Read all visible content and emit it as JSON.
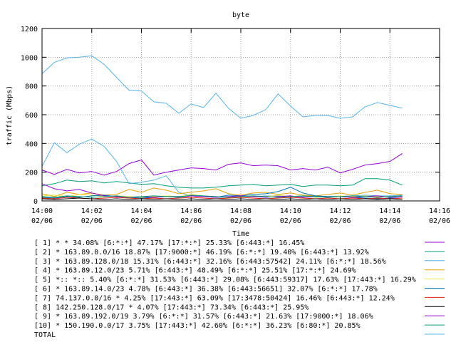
{
  "chart_data": {
    "type": "line",
    "title": "byte",
    "xlabel": "Time",
    "ylabel": "traffic (Mbps)",
    "ylim": [
      0,
      1200
    ],
    "yticks": [
      0,
      200,
      400,
      600,
      800,
      1000,
      1200
    ],
    "xlim": [
      0,
      16
    ],
    "xticks": [
      {
        "pos": 0,
        "time": "14:00",
        "date": "02/06"
      },
      {
        "pos": 2,
        "time": "14:02",
        "date": "02/06"
      },
      {
        "pos": 4,
        "time": "14:04",
        "date": "02/06"
      },
      {
        "pos": 6,
        "time": "14:06",
        "date": "02/06"
      },
      {
        "pos": 8,
        "time": "14:08",
        "date": "02/06"
      },
      {
        "pos": 10,
        "time": "14:10",
        "date": "02/06"
      },
      {
        "pos": 12,
        "time": "14:12",
        "date": "02/06"
      },
      {
        "pos": 14,
        "time": "14:14",
        "date": "02/06"
      },
      {
        "pos": 16,
        "time": "14:16",
        "date": "02/06"
      }
    ],
    "x": [
      0,
      0.5,
      1,
      1.5,
      2,
      2.5,
      3,
      3.5,
      4,
      4.5,
      5,
      5.5,
      6,
      6.5,
      7,
      7.5,
      8,
      8.5,
      9,
      9.5,
      10,
      10.5,
      11,
      11.5,
      12,
      12.5,
      13,
      13.5,
      14,
      14.5
    ],
    "grid": true,
    "legend_position": "bottom",
    "series": [
      {
        "name": "[ 1] * * 34.08%  [6:*:*] 47.17% [17:*:*] 25.33% [6:443:*] 16.45%",
        "color": "#9400d3",
        "values": [
          215,
          185,
          220,
          195,
          205,
          180,
          205,
          260,
          285,
          180,
          200,
          215,
          230,
          225,
          215,
          255,
          265,
          245,
          250,
          245,
          215,
          225,
          215,
          235,
          195,
          220,
          250,
          260,
          275,
          330
        ]
      },
      {
        "name": "[ 2] * 163.89.0.0/16 18.87%  [17:9000:*] 46.19% [6:*:*] 19.40% [6:443:*] 13.92%",
        "color": "#009e73",
        "values": [
          105,
          120,
          145,
          135,
          140,
          125,
          135,
          125,
          115,
          120,
          105,
          95,
          90,
          90,
          95,
          105,
          110,
          115,
          105,
          110,
          115,
          100,
          110,
          110,
          105,
          110,
          155,
          155,
          145,
          110
        ]
      },
      {
        "name": "[ 3] * 163.89.128.0/18 15.31%  [6:443:*] 32.16% [6:443:57542] 24.11% [6:*:*] 18.56%",
        "color": "#56b4e9",
        "values": [
          240,
          405,
          335,
          395,
          430,
          380,
          275,
          120,
          130,
          145,
          175,
          60,
          35,
          30,
          25,
          25,
          30,
          30,
          35,
          35,
          30,
          30,
          35,
          30,
          30,
          35,
          40,
          35,
          35,
          40
        ]
      },
      {
        "name": "[ 4] * 163.89.12.0/23 5.71%  [6:443:*] 48.49% [6:*:*] 25.51% [17:*:*] 24.69%",
        "color": "#e69f00",
        "values": [
          50,
          30,
          60,
          45,
          55,
          40,
          45,
          80,
          60,
          90,
          75,
          50,
          60,
          70,
          85,
          50,
          40,
          55,
          60,
          45,
          55,
          40,
          35,
          45,
          55,
          40,
          60,
          75,
          50,
          45
        ]
      },
      {
        "name": "[ 5] *:: *:: 5.40%  [6:*:*] 31.53% [6:443:*] 29.08% [6:443:59317] 17.63% [17:443:*] 16.29%",
        "color": "#f0e442",
        "values": [
          35,
          40,
          30,
          45,
          40,
          30,
          35,
          30,
          25,
          30,
          35,
          30,
          45,
          35,
          30,
          25,
          30,
          35,
          30,
          40,
          30,
          35,
          25,
          30,
          35,
          30,
          35,
          30,
          30,
          35
        ]
      },
      {
        "name": "[ 6] * 163.89.14.0/23 4.78%  [6:443:*] 36.38% [6:443:56651] 32.07% [6:*:*] 17.78%",
        "color": "#0072b2",
        "values": [
          25,
          20,
          30,
          25,
          35,
          40,
          30,
          25,
          20,
          25,
          30,
          30,
          35,
          30,
          25,
          40,
          35,
          45,
          50,
          65,
          95,
          55,
          35,
          30,
          30,
          25,
          20,
          15,
          20,
          20
        ]
      },
      {
        "name": "[ 7] 74.137.0.0/16 * 4.25%  [17:443:*] 63.09% [17:3478:50424] 16.46% [6:443:*] 12.24%",
        "color": "#e51e10",
        "values": [
          20,
          15,
          25,
          20,
          15,
          20,
          25,
          20,
          15,
          20,
          15,
          20,
          25,
          20,
          15,
          20,
          25,
          20,
          15,
          20,
          25,
          20,
          15,
          20,
          15,
          20,
          15,
          20,
          15,
          20
        ]
      },
      {
        "name": "[ 8] 142.250.128.0/17 * 4.07%  [17:443:*] 73.34% [6:443:*] 25.95%",
        "color": "#000000",
        "values": [
          15,
          10,
          15,
          20,
          15,
          10,
          15,
          10,
          15,
          10,
          15,
          10,
          15,
          10,
          15,
          10,
          15,
          10,
          15,
          10,
          15,
          10,
          15,
          10,
          15,
          10,
          15,
          10,
          15,
          10
        ]
      },
      {
        "name": "[ 9] * 163.89.192.0/19 3.79%  [6:*:*] 31.57% [6:443:*] 21.63% [17:9000:*] 18.06%",
        "color": "#9400d3",
        "values": [
          120,
          85,
          70,
          80,
          55,
          35,
          30,
          25,
          30,
          25,
          30,
          25,
          35,
          30,
          25,
          30,
          35,
          30,
          25,
          30,
          35,
          25,
          30,
          25,
          30,
          25,
          30,
          35,
          25,
          30
        ]
      },
      {
        "name": "[10] * 150.190.0.0/17 3.75%  [17:443:*] 42.60% [6:*:*] 36.23% [6:80:*] 20.85%",
        "color": "#009e73",
        "values": [
          30,
          25,
          35,
          30,
          25,
          30,
          35,
          25,
          30,
          35,
          30,
          25,
          40,
          35,
          30,
          25,
          30,
          35,
          30,
          25,
          30,
          35,
          30,
          25,
          30,
          35,
          30,
          25,
          30,
          35
        ]
      },
      {
        "name": "TOTAL",
        "color": "#56b4e9",
        "values": [
          885,
          965,
          995,
          1000,
          1010,
          950,
          860,
          770,
          765,
          690,
          680,
          610,
          675,
          650,
          750,
          645,
          575,
          595,
          635,
          745,
          660,
          585,
          595,
          595,
          575,
          585,
          655,
          685,
          665,
          645
        ]
      }
    ]
  }
}
